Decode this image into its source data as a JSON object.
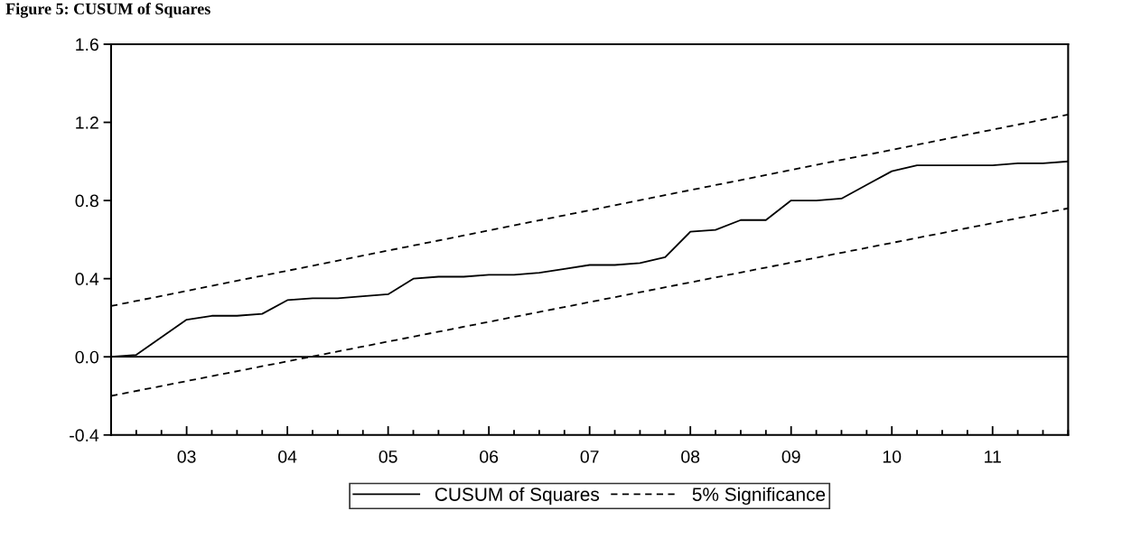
{
  "chart_data": {
    "type": "line",
    "title": "Figure 5: CUSUM of Squares",
    "xlim": [
      2002.25,
      2011.75
    ],
    "xticks": [
      {
        "value": 2003,
        "label": "03"
      },
      {
        "value": 2004,
        "label": "04"
      },
      {
        "value": 2005,
        "label": "05"
      },
      {
        "value": 2006,
        "label": "06"
      },
      {
        "value": 2007,
        "label": "07"
      },
      {
        "value": 2008,
        "label": "08"
      },
      {
        "value": 2009,
        "label": "09"
      },
      {
        "value": 2010,
        "label": "10"
      },
      {
        "value": 2011,
        "label": "11"
      }
    ],
    "ylim": [
      -0.4,
      1.6
    ],
    "yticks": [
      {
        "value": -0.4,
        "label": "-0.4"
      },
      {
        "value": 0,
        "label": "0.0"
      },
      {
        "value": 0.4,
        "label": "0.4"
      },
      {
        "value": 0.8,
        "label": "0.8"
      },
      {
        "value": 1.2,
        "label": "1.2"
      },
      {
        "value": 1.6,
        "label": "1.6"
      }
    ],
    "series": [
      {
        "name": "CUSUM of Squares",
        "color": "#000000",
        "line_style": "solid",
        "x": [
          2002.25,
          2002.5,
          2002.75,
          2003,
          2003.25,
          2003.5,
          2003.75,
          2004,
          2004.25,
          2004.5,
          2004.75,
          2005,
          2005.25,
          2005.5,
          2005.75,
          2006,
          2006.25,
          2006.5,
          2006.75,
          2007,
          2007.25,
          2007.5,
          2007.75,
          2008,
          2008.25,
          2008.5,
          2008.75,
          2009,
          2009.25,
          2009.5,
          2009.75,
          2010,
          2010.25,
          2010.5,
          2010.75,
          2011,
          2011.25,
          2011.5,
          2011.75
        ],
        "values": [
          0.0,
          0.01,
          0.1,
          0.19,
          0.21,
          0.21,
          0.22,
          0.29,
          0.3,
          0.3,
          0.31,
          0.32,
          0.4,
          0.41,
          0.41,
          0.42,
          0.42,
          0.43,
          0.45,
          0.47,
          0.47,
          0.48,
          0.51,
          0.64,
          0.65,
          0.7,
          0.7,
          0.8,
          0.8,
          0.81,
          0.88,
          0.95,
          0.98,
          0.98,
          0.98,
          0.98,
          0.99,
          0.99,
          1.0
        ]
      },
      {
        "name": "5% Significance",
        "color": "#000000",
        "line_style": "dashed",
        "x": [
          2002.25,
          2011.75
        ],
        "values": [
          0.26,
          1.24
        ]
      },
      {
        "color": "#000000",
        "line_style": "dashed",
        "x": [
          2002.25,
          2011.75
        ],
        "values": [
          -0.2,
          0.76
        ]
      }
    ],
    "ref_lines": [
      {
        "axis": "y",
        "value": 0,
        "color": "#000000",
        "line_style": "solid"
      }
    ],
    "grid": false,
    "legend": "bottom",
    "marker": "none"
  }
}
